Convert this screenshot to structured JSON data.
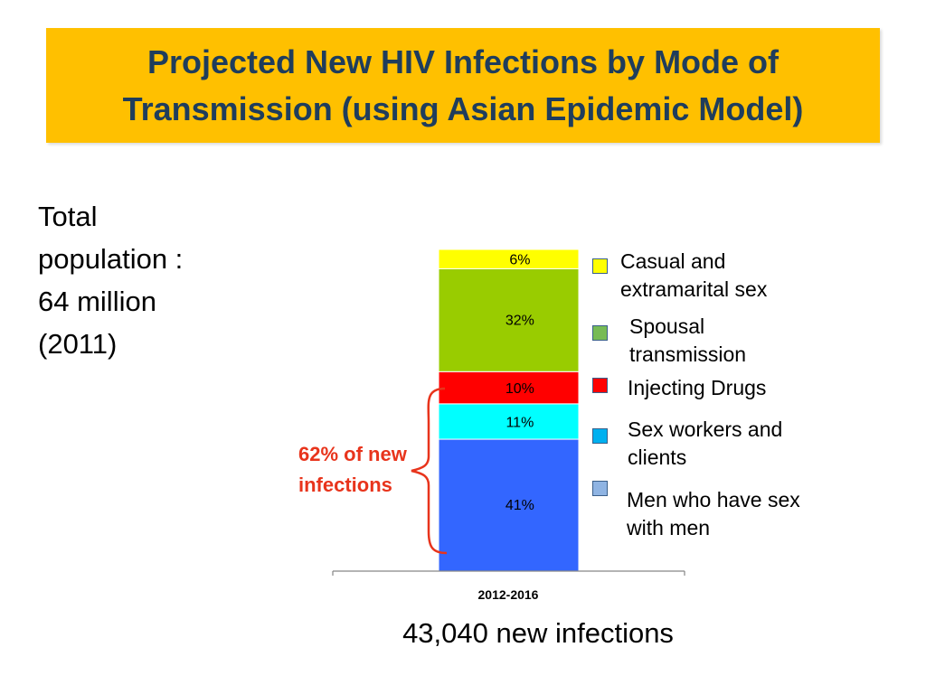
{
  "header": {
    "title": "Projected New HIV Infections by Mode of Transmission (using Asian Epidemic Model)"
  },
  "population_note": "Total population : 64 million (2011)",
  "brace_annotation": "62% of new infections",
  "footer_note": "43,040 new infections",
  "chart_data": {
    "type": "bar",
    "stacked": true,
    "categories": [
      "2012-2016"
    ],
    "series": [
      {
        "name": "Men who have sex with men",
        "values": [
          41
        ],
        "label": "41%",
        "color": "#3366FF",
        "legend_color": "#8FB4E3"
      },
      {
        "name": "Sex workers and clients",
        "values": [
          11
        ],
        "label": "11%",
        "color": "#00FFFF",
        "legend_color": "#00B0F0"
      },
      {
        "name": "Injecting Drugs",
        "values": [
          10
        ],
        "label": "10%",
        "color": "#FF0000",
        "legend_color": "#FF0000"
      },
      {
        "name": "Spousal transmission",
        "values": [
          32
        ],
        "label": "32%",
        "color": "#99CC00",
        "legend_color": "#77BB55"
      },
      {
        "name": "Casual and extramarital sex",
        "values": [
          6
        ],
        "label": "6%",
        "color": "#FFFF00",
        "legend_color": "#FFFF00"
      }
    ],
    "ylim": [
      0,
      100
    ],
    "unit": "%",
    "grid": false,
    "legend_position": "right"
  }
}
